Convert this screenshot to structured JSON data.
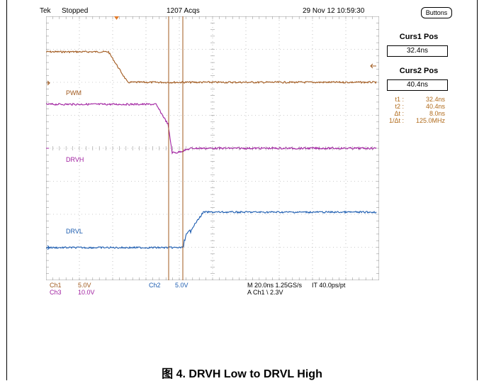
{
  "header": {
    "brand": "Tek",
    "status": "Stopped",
    "acquisitions": "1207 Acqs",
    "datetime": "29 Nov 12 10:59:30"
  },
  "right_panel": {
    "buttons_label": "Buttons",
    "curs1_title": "Curs1 Pos",
    "curs1_value": "32.4ns",
    "curs2_title": "Curs2 Pos",
    "curs2_value": "40.4ns",
    "readout": [
      {
        "key": "t1 :",
        "value": "32.4ns"
      },
      {
        "key": "t2 :",
        "value": "40.4ns"
      },
      {
        "key": "Δt :",
        "value": "8.0ns"
      },
      {
        "key": "1/Δt :",
        "value": "125.0MHz"
      }
    ]
  },
  "channels": {
    "ch1_marker": "1",
    "ch2_marker": "2",
    "ch3_marker": "3",
    "pwm_label": "PWM",
    "drvh_label": "DRVH",
    "drvl_label": "DRVL"
  },
  "settings": {
    "ch1_name": "Ch1",
    "ch1_scale": "5.0V",
    "ch3_name": "Ch3",
    "ch3_scale": "10.0V",
    "ch2_name": "Ch2",
    "ch2_scale": "5.0V",
    "timebase": "M 20.0ns 1.25GS/s",
    "interval": "IT 40.0ps/pt",
    "trigger": "A  Ch1  \\  2.3V"
  },
  "caption": "图 4. DRVH Low to DRVL High",
  "colors": {
    "ch1": "#a0581c",
    "ch3": "#a020a0",
    "ch2": "#1c5cb0",
    "cursor": "#a0581c",
    "grid": "#9a9a9a"
  }
}
